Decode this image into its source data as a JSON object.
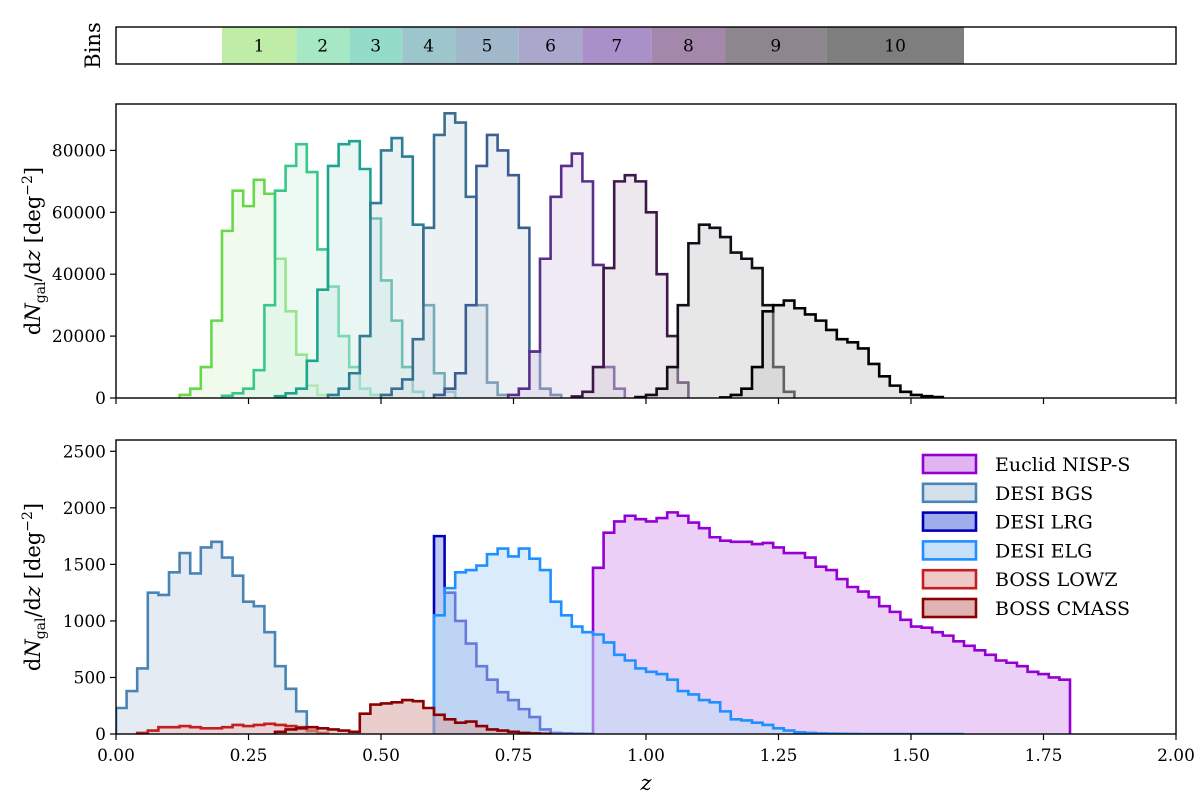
{
  "chart_data": [
    {
      "type": "bar",
      "panel": "bins",
      "ylabel": "Bins",
      "xlim": [
        0.0,
        2.0
      ],
      "bins": [
        {
          "label": "1",
          "start": 0.2,
          "end": 0.34,
          "color": "#bfeda8"
        },
        {
          "label": "2",
          "start": 0.34,
          "end": 0.44,
          "color": "#a6e8c3"
        },
        {
          "label": "3",
          "start": 0.44,
          "end": 0.54,
          "color": "#93dcc9"
        },
        {
          "label": "4",
          "start": 0.54,
          "end": 0.64,
          "color": "#9cc6cc"
        },
        {
          "label": "5",
          "start": 0.64,
          "end": 0.76,
          "color": "#a0b8ca"
        },
        {
          "label": "6",
          "start": 0.76,
          "end": 0.88,
          "color": "#a9a8cc"
        },
        {
          "label": "7",
          "start": 0.88,
          "end": 1.01,
          "color": "#aa90c8"
        },
        {
          "label": "8",
          "start": 1.01,
          "end": 1.15,
          "color": "#a488ac"
        },
        {
          "label": "9",
          "start": 1.15,
          "end": 1.34,
          "color": "#8e868f"
        },
        {
          "label": "10",
          "start": 1.34,
          "end": 1.6,
          "color": "#7e7e7e"
        }
      ]
    },
    {
      "type": "area",
      "panel": "tomographic",
      "ylabel": "dNgal/dz [deg−2]",
      "xlim": [
        0.0,
        2.0
      ],
      "ylim": [
        0,
        95000
      ],
      "yticks": [
        0,
        20000,
        40000,
        60000,
        80000
      ],
      "binwidth": 0.02,
      "series": [
        {
          "color": "#68d84a",
          "x0": 0.12,
          "values": [
            1000,
            3000,
            10000,
            25000,
            54000,
            67000,
            62000,
            70500,
            66000,
            45000,
            28000,
            14000,
            4000,
            1000
          ]
        },
        {
          "color": "#3ac78a",
          "x0": 0.2,
          "values": [
            700,
            1500,
            3000,
            9000,
            30000,
            67000,
            75000,
            82000,
            73000,
            48000,
            36000,
            20000,
            10000,
            3000,
            1000
          ]
        },
        {
          "color": "#1fa58e",
          "x0": 0.3,
          "values": [
            600,
            1500,
            3000,
            12000,
            35000,
            75000,
            82000,
            83000,
            74000,
            58000,
            38000,
            25000,
            10000,
            2000
          ]
        },
        {
          "color": "#2d7f93",
          "x0": 0.4,
          "values": [
            1000,
            3000,
            8000,
            20000,
            63000,
            80000,
            84000,
            78000,
            56000,
            30000,
            8000,
            2000
          ]
        },
        {
          "color": "#3a6f92",
          "x0": 0.5,
          "values": [
            1000,
            3000,
            6000,
            19000,
            55000,
            85000,
            92000,
            89000,
            65000,
            30000,
            5000,
            1000
          ]
        },
        {
          "color": "#3c5d92",
          "x0": 0.6,
          "values": [
            1000,
            3000,
            8000,
            30000,
            75000,
            85000,
            80000,
            72000,
            55000,
            15000,
            3000,
            1000
          ]
        },
        {
          "color": "#5a2e8c",
          "x0": 0.74,
          "values": [
            1000,
            3000,
            15000,
            45000,
            65000,
            75000,
            79000,
            70000,
            43000,
            10000,
            3000
          ]
        },
        {
          "color": "#3d1848",
          "x0": 0.86,
          "values": [
            500,
            2000,
            10000,
            42000,
            70000,
            72000,
            70000,
            60000,
            40000,
            20000,
            5000
          ]
        },
        {
          "color": "#120d16",
          "x0": 0.98,
          "values": [
            300,
            1000,
            3000,
            10000,
            30000,
            50000,
            56000,
            55000,
            52000,
            47000,
            45000,
            42000,
            30000,
            10000,
            2000
          ]
        },
        {
          "color": "#000000",
          "x0": 1.14,
          "values": [
            200,
            1000,
            3000,
            10000,
            28000,
            30000,
            31500,
            29000,
            27000,
            25000,
            22000,
            19000,
            18000,
            16000,
            11000,
            7000,
            4000,
            2000,
            1000,
            600,
            300
          ]
        }
      ]
    },
    {
      "type": "area",
      "panel": "surveys",
      "xlabel": "z",
      "ylabel": "dNgal/dz [deg−2]",
      "xlim": [
        0.0,
        2.0
      ],
      "ylim": [
        0,
        2600
      ],
      "yticks": [
        0,
        500,
        1000,
        1500,
        2000,
        2500
      ],
      "xticks": [
        "0.00",
        "0.25",
        "0.50",
        "0.75",
        "1.00",
        "1.25",
        "1.50",
        "1.75",
        "2.00"
      ],
      "binwidth": 0.02,
      "legend_position": "upper right",
      "series": [
        {
          "name": "Euclid NISP-S",
          "color": "#9400d3",
          "fill": "#dca8f0",
          "x0": 0.9,
          "values": [
            1470,
            1780,
            1880,
            1930,
            1900,
            1880,
            1910,
            1960,
            1930,
            1870,
            1820,
            1740,
            1710,
            1700,
            1700,
            1680,
            1690,
            1650,
            1600,
            1600,
            1560,
            1480,
            1450,
            1370,
            1300,
            1260,
            1210,
            1130,
            1080,
            1010,
            950,
            940,
            900,
            870,
            820,
            780,
            740,
            700,
            650,
            630,
            600,
            550,
            530,
            500,
            480
          ]
        },
        {
          "name": "DESI BGS",
          "color": "#4a84b4",
          "fill": "#cddbe9",
          "x0": 0.0,
          "values": [
            230,
            380,
            580,
            1250,
            1230,
            1430,
            1600,
            1420,
            1650,
            1700,
            1560,
            1400,
            1170,
            1130,
            900,
            600,
            400,
            200,
            20
          ]
        },
        {
          "name": "DESI LRG",
          "color": "#0000b8",
          "fill": "#8ea0e8",
          "x0": 0.6,
          "values": [
            1750,
            1250,
            1000,
            800,
            600,
            480,
            370,
            300,
            220,
            150,
            40,
            10,
            5,
            3,
            2
          ]
        },
        {
          "name": "DESI ELG",
          "color": "#1e90ff",
          "fill": "#bcdcf8",
          "x0": 0.6,
          "values": [
            1050,
            1290,
            1430,
            1450,
            1490,
            1590,
            1640,
            1570,
            1640,
            1550,
            1450,
            1170,
            1050,
            950,
            900,
            880,
            810,
            700,
            650,
            580,
            550,
            530,
            480,
            380,
            350,
            300,
            280,
            200,
            130,
            120,
            100,
            80,
            50,
            30,
            15,
            10,
            5,
            3,
            2,
            1,
            0,
            0,
            0,
            0,
            0,
            0,
            0,
            0,
            0,
            0
          ]
        },
        {
          "name": "BOSS LOWZ",
          "color": "#c41e1e",
          "fill": "#ecc0c0",
          "x0": 0.04,
          "values": [
            10,
            30,
            60,
            60,
            70,
            60,
            50,
            50,
            60,
            80,
            70,
            80,
            90,
            80,
            70,
            60,
            30,
            10
          ]
        },
        {
          "name": "BOSS CMASS",
          "color": "#8b0000",
          "fill": "#d9a6a6",
          "x0": 0.3,
          "values": [
            20,
            40,
            50,
            60,
            50,
            40,
            30,
            20,
            180,
            260,
            270,
            280,
            300,
            290,
            230,
            170,
            130,
            100,
            110,
            70,
            40,
            30,
            20,
            10,
            5,
            2
          ]
        }
      ]
    }
  ]
}
